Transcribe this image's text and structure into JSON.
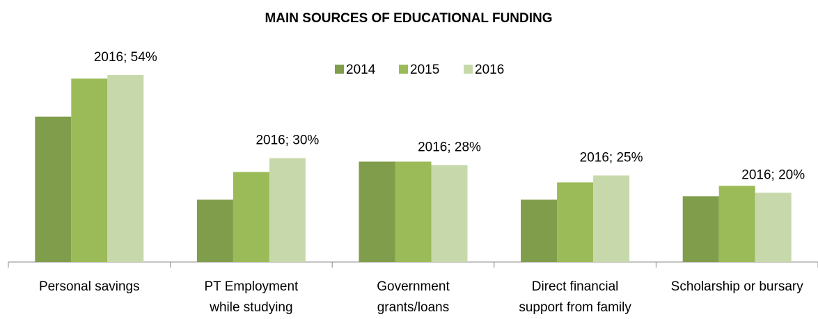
{
  "chart_data": {
    "type": "bar",
    "title": "MAIN SOURCES OF EDUCATIONAL FUNDING",
    "categories": [
      "Personal savings",
      "PT Employment while studying",
      "Government grants/loans",
      "Direct financial support from family",
      "Scholarship or bursary"
    ],
    "series": [
      {
        "name": "2014",
        "color": "#7f9d4b",
        "values": [
          42,
          18,
          29,
          18,
          19
        ]
      },
      {
        "name": "2015",
        "color": "#9bbb59",
        "values": [
          53,
          26,
          29,
          23,
          22
        ]
      },
      {
        "name": "2016",
        "color": "#c7d9ab",
        "values": [
          54,
          30,
          28,
          25,
          20
        ],
        "value_labels": [
          "2016; 54%",
          "2016; 30%",
          "2016; 28%",
          "2016; 25%",
          "2016; 20%"
        ]
      }
    ],
    "legend": "top"
  }
}
